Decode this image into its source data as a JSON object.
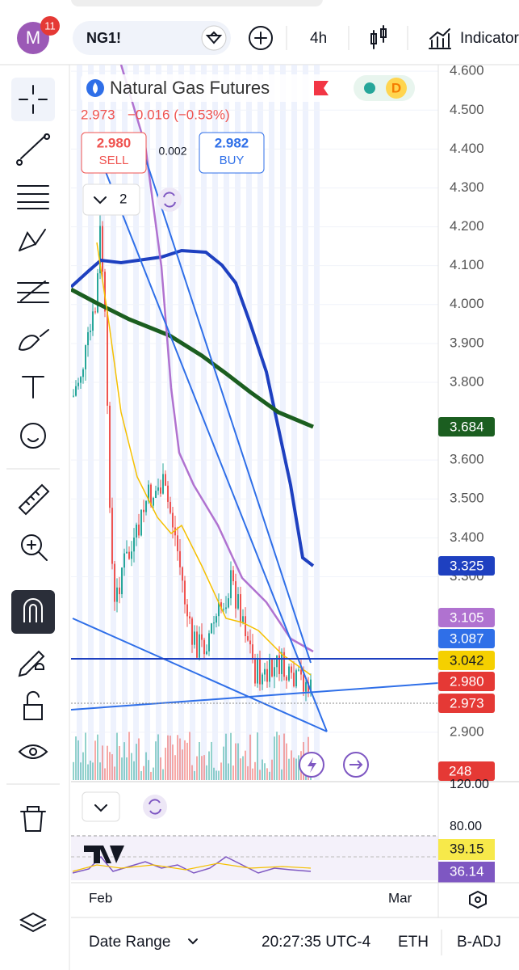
{
  "top_bar": {
    "avatar": "M",
    "badge": "11",
    "symbol": "NG1!",
    "interval": "4h",
    "indicators": "Indicators"
  },
  "legend": {
    "title": "Natural Gas Futures",
    "badge": "D",
    "last": "2.973",
    "change": "−0.016 (−0.53%)",
    "sell_price": "2.980",
    "sell": "SELL",
    "spread": "0.002",
    "buy_price": "2.982",
    "buy": "BUY",
    "indicator_count": "2"
  },
  "price_axis": {
    "ylim": [
      2.777,
      4.617
    ],
    "ticks": [
      {
        "value": 4.6,
        "label": "4.600"
      },
      {
        "value": 4.5,
        "label": "4.500"
      },
      {
        "value": 4.4,
        "label": "4.400"
      },
      {
        "value": 4.3,
        "label": "4.300"
      },
      {
        "value": 4.2,
        "label": "4.200"
      },
      {
        "value": 4.1,
        "label": "4.100"
      },
      {
        "value": 4.0,
        "label": "4.000"
      },
      {
        "value": 3.9,
        "label": "3.900"
      },
      {
        "value": 3.8,
        "label": "3.800"
      },
      {
        "value": 3.6,
        "label": "3.600"
      },
      {
        "value": 3.5,
        "label": "3.500"
      },
      {
        "value": 3.4,
        "label": "3.400"
      },
      {
        "value": 3.3,
        "label": "3.300"
      },
      {
        "value": 2.9,
        "label": "2.900"
      }
    ],
    "tags": [
      {
        "label": "3.684",
        "color": "#1b5e20"
      },
      {
        "label": "3.325",
        "color": "#1e40c0"
      },
      {
        "label": "3.105",
        "color": "#b072d0"
      },
      {
        "label": "3.087",
        "color": "#2f6fe8"
      },
      {
        "label": "3.042",
        "color": "#f5d000"
      },
      {
        "label": "2.980",
        "color": "#e53935"
      },
      {
        "label": "2.973",
        "color": "#e53935"
      }
    ],
    "volume_tag": "248"
  },
  "oscillator": {
    "ticks": [
      "120.00",
      "80.00"
    ],
    "tags": [
      {
        "label": "39.15",
        "color": "#f7e94a"
      },
      {
        "label": "36.14",
        "color": "#7e57c2"
      }
    ]
  },
  "time_axis": {
    "labels": [
      "Feb",
      "Mar"
    ]
  },
  "bottom_bar": {
    "date_range": "Date Range",
    "time": "20:27:35 UTC-4",
    "session": "ETH",
    "adjust": "B-ADJ"
  }
}
